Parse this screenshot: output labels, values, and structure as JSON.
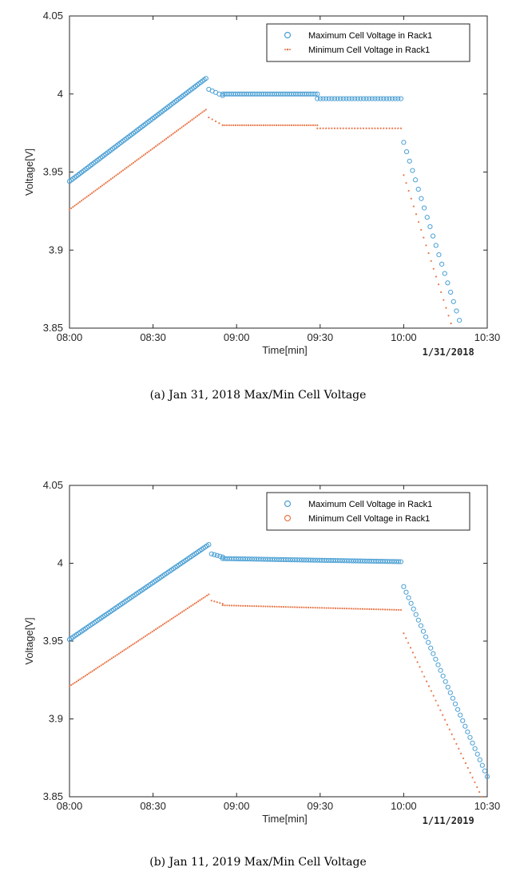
{
  "chart_data": [
    {
      "type": "scatter",
      "caption": "(a) Jan 31, 2018 Max/Min Cell Voltage",
      "date_label": "1/31/2018",
      "xlabel": "Time[min]",
      "ylabel": "Voltage[V]",
      "x_unit": "minutes after 08:00",
      "xlim": [
        0,
        150
      ],
      "ylim": [
        3.85,
        4.05
      ],
      "xticks": [
        0,
        30,
        60,
        90,
        120,
        150
      ],
      "xtick_labels": [
        "08:00",
        "08:30",
        "09:00",
        "09:30",
        "10:00",
        "10:30"
      ],
      "yticks": [
        3.85,
        3.9,
        3.95,
        4.0,
        4.05
      ],
      "ytick_labels": [
        "3.85",
        "3.9",
        "3.95",
        "4",
        "4.05"
      ],
      "legend": "top-right",
      "series": [
        {
          "name": "Maximum Cell Voltage in Rack1",
          "color": "#4a9fd4",
          "marker": "circle",
          "segments": [
            {
              "x0": 0,
              "x1": 49,
              "n": 80,
              "y0": 3.944,
              "y1": 4.01
            },
            {
              "x0": 50,
              "x1": 55,
              "n": 5,
              "y0": 4.003,
              "y1": 3.999
            },
            {
              "x0": 55,
              "x1": 89,
              "n": 45,
              "y0": 4.0,
              "y1": 4.0
            },
            {
              "x0": 89,
              "x1": 119,
              "n": 30,
              "y0": 3.997,
              "y1": 3.997
            },
            {
              "x0": 120,
              "x1": 140,
              "n": 20,
              "y0": 3.969,
              "y1": 3.855
            }
          ]
        },
        {
          "name": "Minimum Cell Voltage in Rack1",
          "color": "#e8784a",
          "marker": "dot",
          "segments": [
            {
              "x0": 0,
              "x1": 49,
              "n": 80,
              "y0": 3.926,
              "y1": 3.99
            },
            {
              "x0": 50,
              "x1": 55,
              "n": 5,
              "y0": 3.985,
              "y1": 3.98
            },
            {
              "x0": 55,
              "x1": 89,
              "n": 45,
              "y0": 3.98,
              "y1": 3.98
            },
            {
              "x0": 89,
              "x1": 119,
              "n": 30,
              "y0": 3.978,
              "y1": 3.978
            },
            {
              "x0": 120,
              "x1": 137,
              "n": 20,
              "y0": 3.948,
              "y1": 3.853
            }
          ]
        }
      ]
    },
    {
      "type": "scatter",
      "caption": "(b) Jan 11, 2019 Max/Min Cell Voltage",
      "date_label": "1/11/2019",
      "xlabel": "Time[min]",
      "ylabel": "Voltage[V]",
      "x_unit": "minutes after 08:00",
      "xlim": [
        0,
        150
      ],
      "ylim": [
        3.85,
        4.05
      ],
      "xticks": [
        0,
        30,
        60,
        90,
        120,
        150
      ],
      "xtick_labels": [
        "08:00",
        "08:30",
        "09:00",
        "09:30",
        "10:00",
        "10:30"
      ],
      "yticks": [
        3.85,
        3.9,
        3.95,
        4.0,
        4.05
      ],
      "ytick_labels": [
        "3.85",
        "3.9",
        "3.95",
        "4",
        "4.05"
      ],
      "legend": "top-right",
      "series": [
        {
          "name": "Maximum Cell Voltage in Rack1",
          "color": "#4a9fd4",
          "marker": "circle",
          "segments": [
            {
              "x0": 0,
              "x1": 50,
              "n": 80,
              "y0": 3.951,
              "y1": 4.012
            },
            {
              "x0": 51,
              "x1": 55,
              "n": 5,
              "y0": 4.006,
              "y1": 4.004
            },
            {
              "x0": 55,
              "x1": 119,
              "n": 80,
              "y0": 4.003,
              "y1": 4.001
            },
            {
              "x0": 120,
              "x1": 150,
              "n": 35,
              "y0": 3.985,
              "y1": 3.863
            }
          ]
        },
        {
          "name": "Minimum Cell Voltage in Rack1",
          "color": "#e8784a",
          "marker": "dot",
          "segments": [
            {
              "x0": 0,
              "x1": 50,
              "n": 80,
              "y0": 3.921,
              "y1": 3.98
            },
            {
              "x0": 51,
              "x1": 55,
              "n": 5,
              "y0": 3.976,
              "y1": 3.974
            },
            {
              "x0": 55,
              "x1": 119,
              "n": 80,
              "y0": 3.973,
              "y1": 3.97
            },
            {
              "x0": 120,
              "x1": 148,
              "n": 35,
              "y0": 3.955,
              "y1": 3.85
            }
          ]
        }
      ]
    }
  ]
}
